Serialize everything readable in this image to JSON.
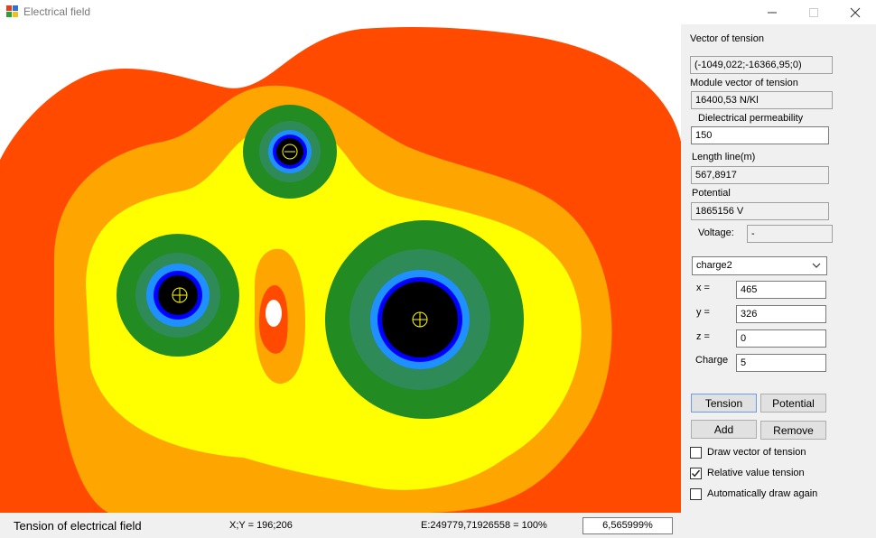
{
  "window": {
    "title": "Electrical field"
  },
  "colors": {
    "orange_red": "#ff4a00",
    "orange": "#ffa500",
    "yellow": "#ffff00",
    "green": "#228b22",
    "teal": "#2e8b57",
    "blue_light": "#1e90ff",
    "blue": "#0000ff",
    "core": "#000000",
    "marker": "#ffff00"
  },
  "panel": {
    "vector_label": "Vector of tension",
    "vector_value": "(-1049,022;-16366,95;0)",
    "module_label": "Module vector of tension",
    "module_value": "16400,53 N/Kl",
    "permeability_label": "Dielectrical permeability",
    "permeability_value": "150",
    "length_label": "Length line(m)",
    "length_value": "567,8917",
    "potential_label": "Potential",
    "potential_value": "1865156 V",
    "voltage_label": "Voltage:",
    "voltage_value": "-",
    "charge_select": "charge2",
    "x_label": "x =",
    "x_value": "465",
    "y_label": "y =",
    "y_value": "326",
    "z_label": "z =",
    "z_value": "0",
    "charge_label": "Charge",
    "charge_value": "5",
    "tension_button": "Tension",
    "potential_button": "Potential",
    "add_button": "Add",
    "remove_button": "Remove",
    "draw_vector_label": "Draw vector of tension",
    "draw_vector_checked": false,
    "relative_label": "Relative value tension",
    "relative_checked": true,
    "auto_draw_label": "Automatically draw again",
    "auto_draw_checked": false
  },
  "status": {
    "title": "Tension of electrical field",
    "xy": "X;Y = 196;206",
    "energy": "E:249779,71926558 = 100%",
    "percent": "6,565999%"
  }
}
